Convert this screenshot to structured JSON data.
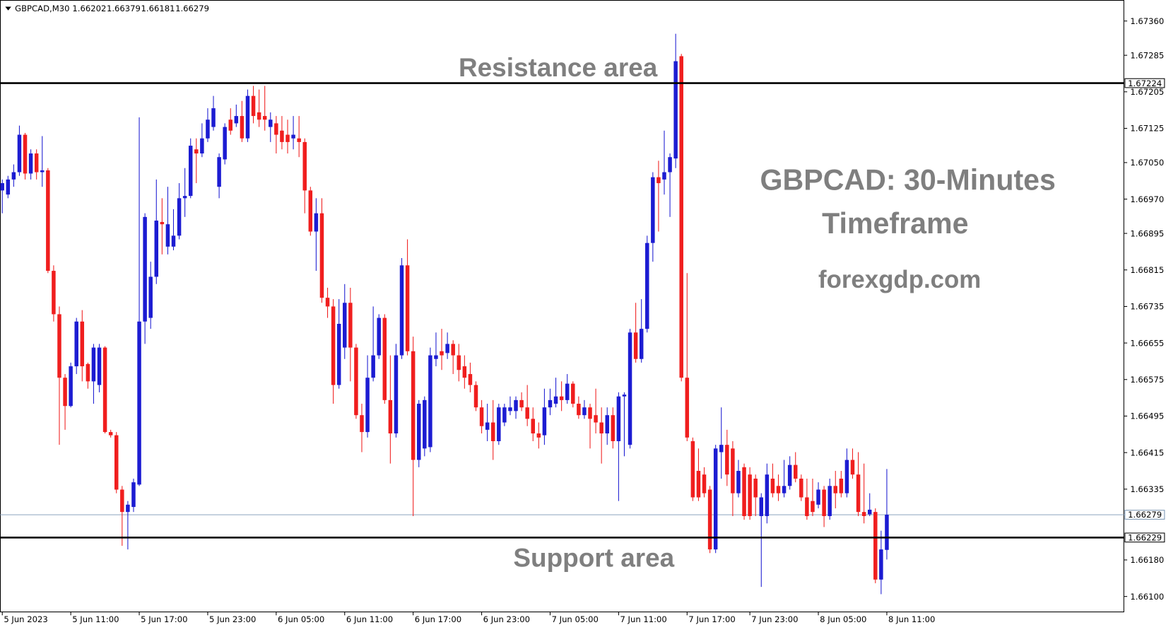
{
  "chart_data": {
    "type": "candlestick",
    "symbol": "GBPCAD,M30",
    "ohlc": [
      1.66202,
      1.66379,
      1.66181,
      1.66279
    ],
    "title": [
      "GBPCAD: 30-Minutes",
      "Timeframe"
    ],
    "source": "forexgdp.com",
    "annotations": {
      "resistance": "Resistance area",
      "support": "Support area"
    },
    "levels": {
      "resistance": 1.67224,
      "support": 1.66229,
      "bid": 1.66279
    },
    "up_color": "#1c1cd2",
    "down_color": "#f01e1e",
    "level_color": "#000000",
    "bid_color": "#7b96b4",
    "xlim": [
      -0.4,
      196.6
    ],
    "ylim": [
      1.66067,
      1.67406
    ],
    "xticks": [
      {
        "value": 0,
        "label": "5 Jun 2023"
      },
      {
        "value": 12,
        "label": "5 Jun 11:00"
      },
      {
        "value": 24,
        "label": "5 Jun 17:00"
      },
      {
        "value": 36,
        "label": "5 Jun 23:00"
      },
      {
        "value": 48,
        "label": "6 Jun 05:00"
      },
      {
        "value": 60,
        "label": "6 Jun 11:00"
      },
      {
        "value": 72,
        "label": "6 Jun 17:00"
      },
      {
        "value": 84,
        "label": "6 Jun 23:00"
      },
      {
        "value": 96,
        "label": "7 Jun 05:00"
      },
      {
        "value": 108,
        "label": "7 Jun 11:00"
      },
      {
        "value": 120,
        "label": "7 Jun 17:00"
      },
      {
        "value": 131,
        "label": "7 Jun 23:00"
      },
      {
        "value": 143,
        "label": "8 Jun 05:00"
      },
      {
        "value": 155,
        "label": "8 Jun 11:00"
      }
    ],
    "yticks": [
      {
        "value": 1.6736,
        "label": "1.67360"
      },
      {
        "value": 1.67285,
        "label": "1.67285"
      },
      {
        "value": 1.67205,
        "label": "1.67205"
      },
      {
        "value": 1.67125,
        "label": "1.67125"
      },
      {
        "value": 1.6705,
        "label": "1.67050"
      },
      {
        "value": 1.6697,
        "label": "1.66970"
      },
      {
        "value": 1.66895,
        "label": "1.66895"
      },
      {
        "value": 1.66815,
        "label": "1.66815"
      },
      {
        "value": 1.66735,
        "label": "1.66735"
      },
      {
        "value": 1.66655,
        "label": "1.66655"
      },
      {
        "value": 1.66575,
        "label": "1.66575"
      },
      {
        "value": 1.66495,
        "label": "1.66495"
      },
      {
        "value": 1.66415,
        "label": "1.66415"
      },
      {
        "value": 1.66335,
        "label": "1.66335"
      },
      {
        "value": 1.6618,
        "label": "1.66180"
      },
      {
        "value": 1.661,
        "label": "1.66100"
      }
    ],
    "candles": [
      [
        1.66989,
        1.67013,
        1.66939,
        1.67005
      ],
      [
        1.6698,
        1.67021,
        1.66972,
        1.67013
      ],
      [
        1.67013,
        1.67046,
        1.66997,
        1.67029
      ],
      [
        1.67029,
        1.67131,
        1.67021,
        1.67111
      ],
      [
        1.67111,
        1.67115,
        1.67013,
        1.67026
      ],
      [
        1.67026,
        1.67079,
        1.67013,
        1.6707
      ],
      [
        1.6707,
        1.67079,
        1.67013,
        1.67029
      ],
      [
        1.67029,
        1.67108,
        1.66997,
        1.67033
      ],
      [
        1.67033,
        1.67038,
        1.66808,
        1.66813
      ],
      [
        1.66813,
        1.66825,
        1.66702,
        1.66718
      ],
      [
        1.66718,
        1.66735,
        1.66432,
        1.66579
      ],
      [
        1.66579,
        1.66587,
        1.66465,
        1.66517
      ],
      [
        1.66517,
        1.66612,
        1.66514,
        1.66604
      ],
      [
        1.66604,
        1.6671,
        1.66587,
        1.66702
      ],
      [
        1.66702,
        1.66727,
        1.66571,
        1.66604
      ],
      [
        1.66609,
        1.66612,
        1.66555,
        1.66571
      ],
      [
        1.66571,
        1.66653,
        1.66522,
        1.66645
      ],
      [
        1.66563,
        1.66653,
        1.66547,
        1.66645
      ],
      [
        1.66645,
        1.66648,
        1.66457,
        1.6646
      ],
      [
        1.6646,
        1.66465,
        1.66448,
        1.66453
      ],
      [
        1.66453,
        1.6646,
        1.66326,
        1.66334
      ],
      [
        1.66334,
        1.66342,
        1.66211,
        1.66285
      ],
      [
        1.66285,
        1.66309,
        1.66203,
        1.66301
      ],
      [
        1.66296,
        1.66358,
        1.66285,
        1.6635
      ],
      [
        1.66345,
        1.67149,
        1.66342,
        1.66702
      ],
      [
        1.66702,
        1.66939,
        1.66653,
        1.66931
      ],
      [
        1.6671,
        1.66833,
        1.66686,
        1.668
      ],
      [
        1.668,
        1.67013,
        1.66784,
        1.66923
      ],
      [
        1.6692,
        1.66972,
        1.66849,
        1.66915
      ],
      [
        1.66866,
        1.66997,
        1.66849,
        1.66915
      ],
      [
        1.66866,
        1.66948,
        1.66858,
        1.6689
      ],
      [
        1.6689,
        1.67005,
        1.66882,
        1.66972
      ],
      [
        1.66972,
        1.67038,
        1.66931,
        1.66977
      ],
      [
        1.66977,
        1.67103,
        1.66972,
        1.67087
      ],
      [
        1.67079,
        1.67103,
        1.67005,
        1.6707
      ],
      [
        1.6707,
        1.67136,
        1.67062,
        1.67103
      ],
      [
        1.67103,
        1.67169,
        1.67095,
        1.67144
      ],
      [
        1.67128,
        1.67196,
        1.6712,
        1.67169
      ],
      [
        1.66997,
        1.6707,
        1.66972,
        1.67062
      ],
      [
        1.67057,
        1.67136,
        1.67046,
        1.67128
      ],
      [
        1.67144,
        1.67169,
        1.67111,
        1.6712
      ],
      [
        1.67136,
        1.67177,
        1.67128,
        1.67152
      ],
      [
        1.67152,
        1.67185,
        1.67095,
        1.67103
      ],
      [
        1.67103,
        1.6721,
        1.67095,
        1.67196
      ],
      [
        1.67196,
        1.67218,
        1.67136,
        1.67152
      ],
      [
        1.6716,
        1.6721,
        1.67128,
        1.67144
      ],
      [
        1.67152,
        1.67218,
        1.6712,
        1.67144
      ],
      [
        1.67128,
        1.6716,
        1.67095,
        1.67144
      ],
      [
        1.67136,
        1.67152,
        1.6707,
        1.67111
      ],
      [
        1.6712,
        1.67152,
        1.67079,
        1.67095
      ],
      [
        1.67111,
        1.67144,
        1.6707,
        1.67095
      ],
      [
        1.67103,
        1.67152,
        1.67079,
        1.67111
      ],
      [
        1.67103,
        1.67152,
        1.67062,
        1.67095
      ],
      [
        1.67095,
        1.67103,
        1.66939,
        1.66989
      ],
      [
        1.66989,
        1.66997,
        1.6689,
        1.66899
      ],
      [
        1.66899,
        1.66972,
        1.66813,
        1.66939
      ],
      [
        1.66939,
        1.66972,
        1.66743,
        1.66754
      ],
      [
        1.66754,
        1.66776,
        1.6671,
        1.66735
      ],
      [
        1.66735,
        1.66751,
        1.66522,
        1.66563
      ],
      [
        1.66563,
        1.66751,
        1.66555,
        1.66697
      ],
      [
        1.66645,
        1.66784,
        1.6662,
        1.66743
      ],
      [
        1.66743,
        1.66776,
        1.66571,
        1.66645
      ],
      [
        1.66645,
        1.66653,
        1.66489,
        1.66497
      ],
      [
        1.66497,
        1.66522,
        1.66416,
        1.6646
      ],
      [
        1.6646,
        1.66628,
        1.66448,
        1.66579
      ],
      [
        1.66579,
        1.66735,
        1.66571,
        1.66628
      ],
      [
        1.66628,
        1.66718,
        1.6662,
        1.6671
      ],
      [
        1.6671,
        1.66718,
        1.66522,
        1.6653
      ],
      [
        1.6653,
        1.66628,
        1.66391,
        1.66457
      ],
      [
        1.66457,
        1.66653,
        1.66448,
        1.66628
      ],
      [
        1.66628,
        1.66841,
        1.6662,
        1.66825
      ],
      [
        1.66825,
        1.66882,
        1.66628,
        1.66637
      ],
      [
        1.66637,
        1.66669,
        1.66276,
        1.66399
      ],
      [
        1.66399,
        1.6653,
        1.66383,
        1.66522
      ],
      [
        1.66424,
        1.66538,
        1.66407,
        1.6653
      ],
      [
        1.66427,
        1.66645,
        1.66416,
        1.66628
      ],
      [
        1.6662,
        1.66678,
        1.66604,
        1.66628
      ],
      [
        1.66637,
        1.66686,
        1.66596,
        1.66628
      ],
      [
        1.66633,
        1.66678,
        1.6662,
        1.66653
      ],
      [
        1.66653,
        1.66661,
        1.66587,
        1.66628
      ],
      [
        1.66628,
        1.66653,
        1.66571,
        1.66596
      ],
      [
        1.66604,
        1.66628,
        1.66555,
        1.66579
      ],
      [
        1.66587,
        1.66612,
        1.66547,
        1.66563
      ],
      [
        1.66563,
        1.66571,
        1.66506,
        1.66514
      ],
      [
        1.66514,
        1.6653,
        1.66457,
        1.66473
      ],
      [
        1.66465,
        1.66522,
        1.6644,
        1.66481
      ],
      [
        1.66481,
        1.6653,
        1.66399,
        1.6644
      ],
      [
        1.6644,
        1.66522,
        1.66432,
        1.66514
      ],
      [
        1.66481,
        1.66522,
        1.66473,
        1.66514
      ],
      [
        1.66506,
        1.66538,
        1.66497,
        1.66514
      ],
      [
        1.66506,
        1.66538,
        1.66489,
        1.6653
      ],
      [
        1.6653,
        1.66547,
        1.66506,
        1.66514
      ],
      [
        1.66514,
        1.66563,
        1.66473,
        1.66489
      ],
      [
        1.66489,
        1.66514,
        1.6644,
        1.66457
      ],
      [
        1.66457,
        1.66481,
        1.66424,
        1.66448
      ],
      [
        1.66453,
        1.66555,
        1.66432,
        1.66514
      ],
      [
        1.66514,
        1.66555,
        1.66497,
        1.6653
      ],
      [
        1.66522,
        1.66579,
        1.66514,
        1.66538
      ],
      [
        1.66538,
        1.66571,
        1.66506,
        1.6653
      ],
      [
        1.6653,
        1.66587,
        1.66522,
        1.66566
      ],
      [
        1.66566,
        1.66571,
        1.66514,
        1.66522
      ],
      [
        1.66522,
        1.66538,
        1.66489,
        1.66497
      ],
      [
        1.66497,
        1.6653,
        1.66489,
        1.66514
      ],
      [
        1.66514,
        1.66522,
        1.66424,
        1.66489
      ],
      [
        1.66497,
        1.66555,
        1.66457,
        1.66481
      ],
      [
        1.66481,
        1.66514,
        1.66391,
        1.66457
      ],
      [
        1.66457,
        1.66514,
        1.66432,
        1.66497
      ],
      [
        1.66497,
        1.66514,
        1.66424,
        1.6644
      ],
      [
        1.6644,
        1.66547,
        1.66309,
        1.66538
      ],
      [
        1.66538,
        1.66547,
        1.66407,
        1.66542
      ],
      [
        1.66432,
        1.66686,
        1.66424,
        1.66678
      ],
      [
        1.66678,
        1.66743,
        1.66612,
        1.6662
      ],
      [
        1.6662,
        1.66751,
        1.66612,
        1.66686
      ],
      [
        1.66686,
        1.6689,
        1.66678,
        1.66874
      ],
      [
        1.66874,
        1.67029,
        1.66833,
        1.67018
      ],
      [
        1.67018,
        1.67054,
        1.66899,
        1.67005
      ],
      [
        1.67013,
        1.6712,
        1.6698,
        1.67029
      ],
      [
        1.67029,
        1.6707,
        1.66931,
        1.67062
      ],
      [
        1.67059,
        1.67332,
        1.67038,
        1.67272
      ],
      [
        1.67283,
        1.67288,
        1.66571,
        1.66579
      ],
      [
        1.66579,
        1.66808,
        1.6644,
        1.66448
      ],
      [
        1.6644,
        1.66448,
        1.66309,
        1.66317
      ],
      [
        1.66375,
        1.66424,
        1.66309,
        1.66317
      ],
      [
        1.66367,
        1.66383,
        1.66317,
        1.66326
      ],
      [
        1.66334,
        1.66342,
        1.66195,
        1.66203
      ],
      [
        1.66203,
        1.66432,
        1.66195,
        1.66424
      ],
      [
        1.66416,
        1.66514,
        1.66358,
        1.66432
      ],
      [
        1.66432,
        1.66465,
        1.66342,
        1.66367
      ],
      [
        1.66424,
        1.6644,
        1.66276,
        1.66326
      ],
      [
        1.66326,
        1.66399,
        1.66317,
        1.66375
      ],
      [
        1.66383,
        1.66391,
        1.66268,
        1.66276
      ],
      [
        1.66367,
        1.66383,
        1.66268,
        1.66276
      ],
      [
        1.66358,
        1.66367,
        1.66276,
        1.66317
      ],
      [
        1.66276,
        1.66326,
        1.66121,
        1.66317
      ],
      [
        1.66276,
        1.66391,
        1.6626,
        1.66367
      ],
      [
        1.66358,
        1.66391,
        1.66317,
        1.66326
      ],
      [
        1.66342,
        1.66367,
        1.66309,
        1.66326
      ],
      [
        1.66326,
        1.66399,
        1.66317,
        1.66342
      ],
      [
        1.66342,
        1.66407,
        1.66334,
        1.66388
      ],
      [
        1.66388,
        1.66416,
        1.6635,
        1.66358
      ],
      [
        1.66358,
        1.66367,
        1.66309,
        1.66317
      ],
      [
        1.66317,
        1.66358,
        1.66268,
        1.66276
      ],
      [
        1.66309,
        1.66358,
        1.66276,
        1.66285
      ],
      [
        1.66301,
        1.6635,
        1.66293,
        1.66334
      ],
      [
        1.66334,
        1.66342,
        1.66252,
        1.66276
      ],
      [
        1.66276,
        1.66358,
        1.66268,
        1.66342
      ],
      [
        1.66342,
        1.66375,
        1.66293,
        1.66326
      ],
      [
        1.66358,
        1.66375,
        1.66317,
        1.66326
      ],
      [
        1.66326,
        1.66424,
        1.66317,
        1.66399
      ],
      [
        1.66399,
        1.66424,
        1.66358,
        1.66367
      ],
      [
        1.66367,
        1.66416,
        1.66276,
        1.66285
      ],
      [
        1.66285,
        1.66391,
        1.6626,
        1.66276
      ],
      [
        1.6628,
        1.66326,
        1.66276,
        1.6629
      ],
      [
        1.66285,
        1.66293,
        1.66129,
        1.66137
      ],
      [
        1.66137,
        1.66244,
        1.66105,
        1.66203
      ],
      [
        1.66202,
        1.66379,
        1.66181,
        1.66279
      ]
    ]
  }
}
